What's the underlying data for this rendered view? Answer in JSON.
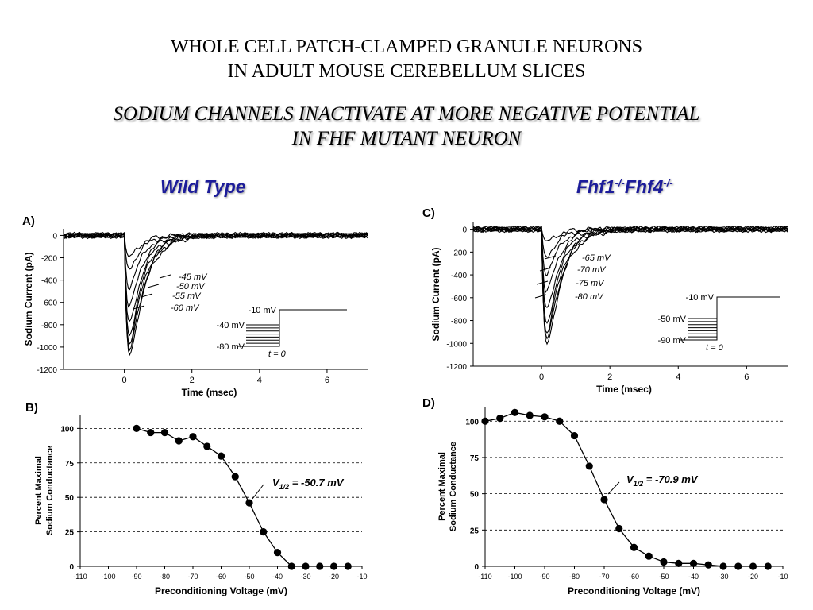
{
  "header": {
    "line1": "WHOLE CELL PATCH-CLAMPED GRANULE NEURONS",
    "line2": "IN ADULT MOUSE CEREBELLUM SLICES",
    "subline1": "SODIUM CHANNELS INACTIVATE AT MORE NEGATIVE POTENTIAL",
    "subline2": "IN FHF MUTANT NEURON"
  },
  "columns": {
    "left": "Wild Type",
    "right_base": "Fhf1",
    "right_sup1": "-/-",
    "right_mid": "Fhf4",
    "right_sup2": "-/-"
  },
  "colors": {
    "heading": "#1c1c9a",
    "ink": "#000000"
  },
  "chart_data": [
    {
      "id": "A",
      "panel_label": "A)",
      "type": "line",
      "xlabel": "Time (msec)",
      "ylabel": "Sodium Current (pA)",
      "xlim": [
        -1.8,
        7.2
      ],
      "ylim": [
        -1200,
        60
      ],
      "x_ticks": [
        "0",
        "2",
        "4",
        "6"
      ],
      "y_ticks": [
        "0",
        "-200",
        "-400",
        "-600",
        "-800",
        "-1000",
        "-1200"
      ],
      "series": [
        {
          "peak": -210,
          "label": "-45 mV"
        },
        {
          "peak": -310,
          "label": "-50 mV"
        },
        {
          "peak": -470,
          "label": "-55 mV"
        },
        {
          "peak": -640,
          "label": "-60 mV"
        },
        {
          "peak": -780
        },
        {
          "peak": -870
        },
        {
          "peak": -930
        },
        {
          "peak": -975
        },
        {
          "peak": -1000
        }
      ],
      "protocol": {
        "levels": [
          "-10 mV",
          "-40 mV",
          "-80 mV"
        ],
        "t_label": "t = 0",
        "steps": 8
      }
    },
    {
      "id": "C",
      "panel_label": "C)",
      "type": "line",
      "xlabel": "Time (msec)",
      "ylabel": "Sodium Current (pA)",
      "xlim": [
        -2,
        7.2
      ],
      "ylim": [
        -1200,
        60
      ],
      "x_ticks": [
        "0",
        "2",
        "4",
        "6"
      ],
      "y_ticks": [
        "0",
        "-200",
        "-400",
        "-600",
        "-800",
        "-1000",
        "-1200"
      ],
      "series": [
        {
          "peak": -120
        },
        {
          "peak": -250,
          "label": "-65 mV"
        },
        {
          "peak": -390,
          "label": "-70 mV"
        },
        {
          "peak": -550,
          "label": "-75 mV"
        },
        {
          "peak": -700,
          "label": "-80 mV"
        },
        {
          "peak": -800
        },
        {
          "peak": -870
        },
        {
          "peak": -910
        },
        {
          "peak": -940
        }
      ],
      "protocol": {
        "levels": [
          "-10 mV",
          "-50 mV",
          "-90 mV"
        ],
        "t_label": "t = 0",
        "steps": 8
      }
    },
    {
      "id": "B",
      "panel_label": "B)",
      "type": "line",
      "xlabel": "Preconditioning Voltage (mV)",
      "ylabel": [
        "Percent Maximal",
        "Sodium Conductance"
      ],
      "xlim": [
        -110,
        -10
      ],
      "ylim": [
        0,
        110
      ],
      "x_ticks": [
        "-110",
        "-100",
        "-90",
        "-80",
        "-70",
        "-60",
        "-50",
        "-40",
        "-30",
        "-20",
        "-10"
      ],
      "y_ticks": [
        "0",
        "25",
        "50",
        "75",
        "100"
      ],
      "gridlines": [
        25,
        50,
        75,
        100
      ],
      "x": [
        -90,
        -85,
        -80,
        -75,
        -70,
        -65,
        -60,
        -55,
        -50,
        -45,
        -40,
        -35,
        -30,
        -25,
        -20,
        -15
      ],
      "y": [
        100,
        97,
        97,
        91,
        94,
        87,
        80,
        65,
        46,
        25,
        10,
        0,
        0,
        0,
        0,
        0
      ],
      "annotation": {
        "text": "V",
        "sub": "1/2",
        "rest": " = -50.7 mV"
      }
    },
    {
      "id": "D",
      "panel_label": "D)",
      "type": "line",
      "xlabel": "Preconditioning Voltage (mV)",
      "ylabel": [
        "Percent Maximal",
        "Sodium Conductance"
      ],
      "xlim": [
        -110,
        -10
      ],
      "ylim": [
        0,
        110
      ],
      "x_ticks": [
        "-110",
        "-100",
        "-90",
        "-80",
        "-70",
        "-60",
        "-50",
        "-40",
        "-30",
        "-20",
        "-10"
      ],
      "y_ticks": [
        "0",
        "25",
        "50",
        "75",
        "100"
      ],
      "gridlines": [
        25,
        50,
        75,
        100
      ],
      "x": [
        -110,
        -105,
        -100,
        -95,
        -90,
        -85,
        -80,
        -75,
        -70,
        -65,
        -60,
        -55,
        -50,
        -45,
        -40,
        -35,
        -30,
        -25,
        -20,
        -15
      ],
      "y": [
        100,
        102,
        106,
        104,
        103,
        100,
        90,
        69,
        46,
        26,
        13,
        7,
        3,
        2,
        2,
        1,
        0,
        0,
        0,
        0
      ],
      "annotation": {
        "text": "V",
        "sub": "1/2",
        "rest": " = -70.9 mV"
      }
    }
  ]
}
